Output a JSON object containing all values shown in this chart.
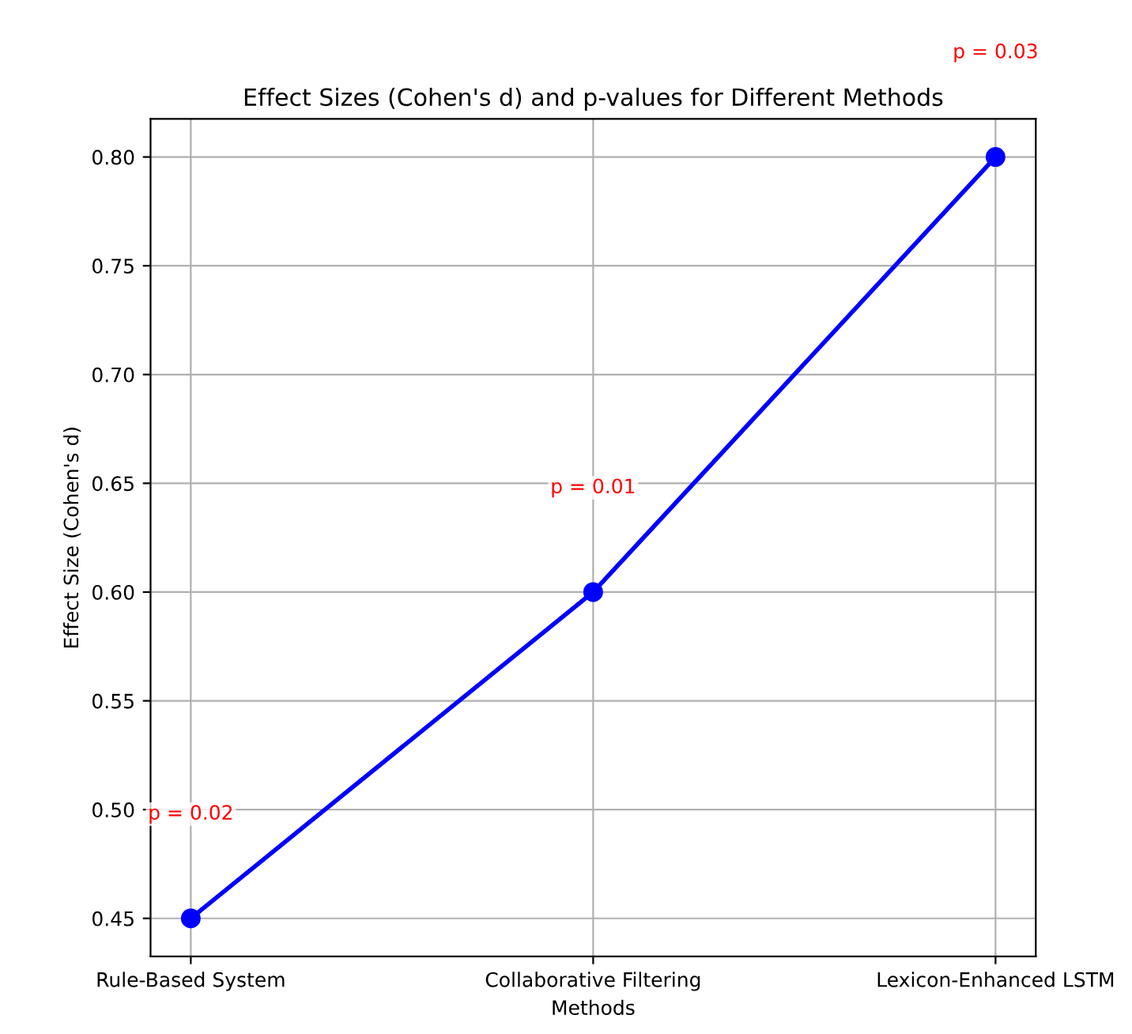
{
  "chart_data": {
    "type": "line",
    "title": "Effect Sizes (Cohen's d) and p-values for Different Methods",
    "xlabel": "Methods",
    "ylabel": "Effect Size (Cohen's d)",
    "categories": [
      "Rule-Based System",
      "Collaborative Filtering",
      "Lexicon-Enhanced LSTM"
    ],
    "series": [
      {
        "color": "#0000ff",
        "values": [
          0.45,
          0.6,
          0.8
        ]
      }
    ],
    "annotations": [
      "p = 0.02",
      "p = 0.01",
      "p = 0.03"
    ],
    "ylim": [
      0.4325,
      0.8175
    ],
    "yticks": [
      0.45,
      {
        "value": 0.5,
        "label": "0.50"
      },
      0.55,
      {
        "value": 0.6,
        "label": "0.60"
      },
      0.65,
      {
        "value": 0.7,
        "label": "0.70"
      },
      0.75,
      {
        "value": 0.8,
        "label": "0.80"
      }
    ],
    "grid": true,
    "marker": "circle",
    "line_style": "solid"
  }
}
